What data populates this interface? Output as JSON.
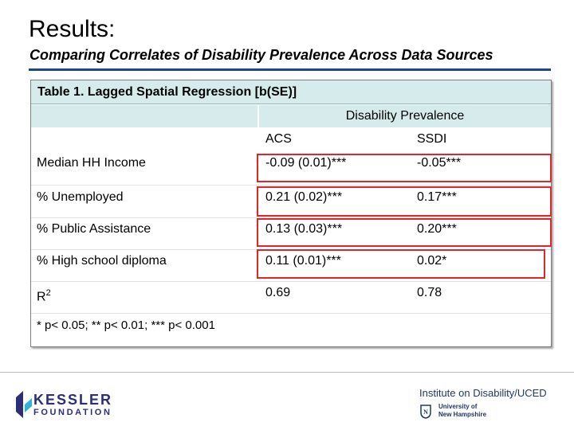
{
  "slide": {
    "title": "Results:",
    "subtitle": "Comparing Correlates of Disability Prevalence Across Data Sources"
  },
  "table": {
    "caption": "Table 1. Lagged Spatial Regression [b(SE)]",
    "group_header": "Disability Prevalence",
    "columns": [
      "ACS",
      "SSDI"
    ],
    "rows": [
      {
        "label": "Median HH Income",
        "acs": "-0.09 (0.01)***",
        "ssdi": "-0.05***"
      },
      {
        "label": "% Unemployed",
        "acs": "0.21 (0.02)***",
        "ssdi": "0.17***"
      },
      {
        "label": "% Public Assistance",
        "acs": "0.13 (0.03)***",
        "ssdi": "0.20***"
      },
      {
        "label": "% High school diploma",
        "acs": "0.11 (0.01)***",
        "ssdi": "0.02*"
      },
      {
        "label": "R",
        "label_sup": "2",
        "acs": "0.69",
        "ssdi": "0.78"
      }
    ],
    "footnote": "* p< 0.05; ** p< 0.01; *** p< 0.001",
    "highlight_color": "#e0262b"
  },
  "footer": {
    "kessler_name": "KESSLER",
    "kessler_sub": "FOUNDATION",
    "institute": "Institute on Disability/UCED",
    "unh_line1": "University of",
    "unh_line2": "New Hampshire"
  },
  "colors": {
    "header_fill": "#d6ecec",
    "rule": "#1f497d",
    "kessler_blue": "#2d2d7a",
    "kessler_accent": "#2fb3d6"
  }
}
